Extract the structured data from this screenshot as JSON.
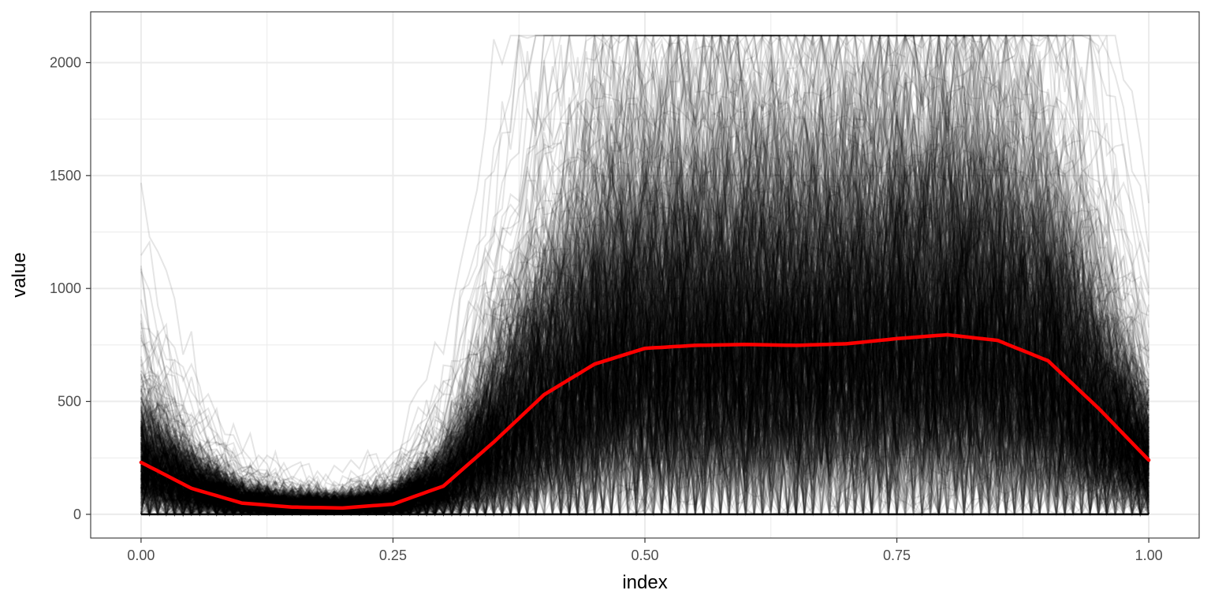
{
  "chart_data": {
    "type": "line",
    "title": "",
    "xlabel": "index",
    "ylabel": "value",
    "xlim": [
      -0.05,
      1.05
    ],
    "ylim": [
      -105,
      2225
    ],
    "x_ticks": [
      0.0,
      0.25,
      0.5,
      0.75,
      1.0
    ],
    "x_tick_labels": [
      "0.00",
      "0.25",
      "0.50",
      "0.75",
      "1.00"
    ],
    "y_ticks": [
      0,
      500,
      1000,
      1500,
      2000
    ],
    "y_tick_labels": [
      "0",
      "500",
      "1000",
      "1500",
      "2000"
    ],
    "grid": true,
    "legend": "none",
    "colors": {
      "traces": "#000000",
      "mean": "#ff0000",
      "grid": "#ebebeb",
      "panel_border": "#333333"
    },
    "trace_count": 600,
    "trace_points": 121,
    "series": [
      {
        "role": "mean",
        "x": [
          0.0,
          0.05,
          0.1,
          0.15,
          0.2,
          0.25,
          0.3,
          0.35,
          0.4,
          0.45,
          0.5,
          0.55,
          0.6,
          0.65,
          0.7,
          0.75,
          0.8,
          0.85,
          0.9,
          0.95,
          1.0
        ],
        "values": [
          230,
          115,
          50,
          32,
          28,
          45,
          125,
          320,
          530,
          665,
          735,
          748,
          752,
          748,
          755,
          778,
          795,
          770,
          680,
          470,
          240
        ]
      }
    ]
  }
}
